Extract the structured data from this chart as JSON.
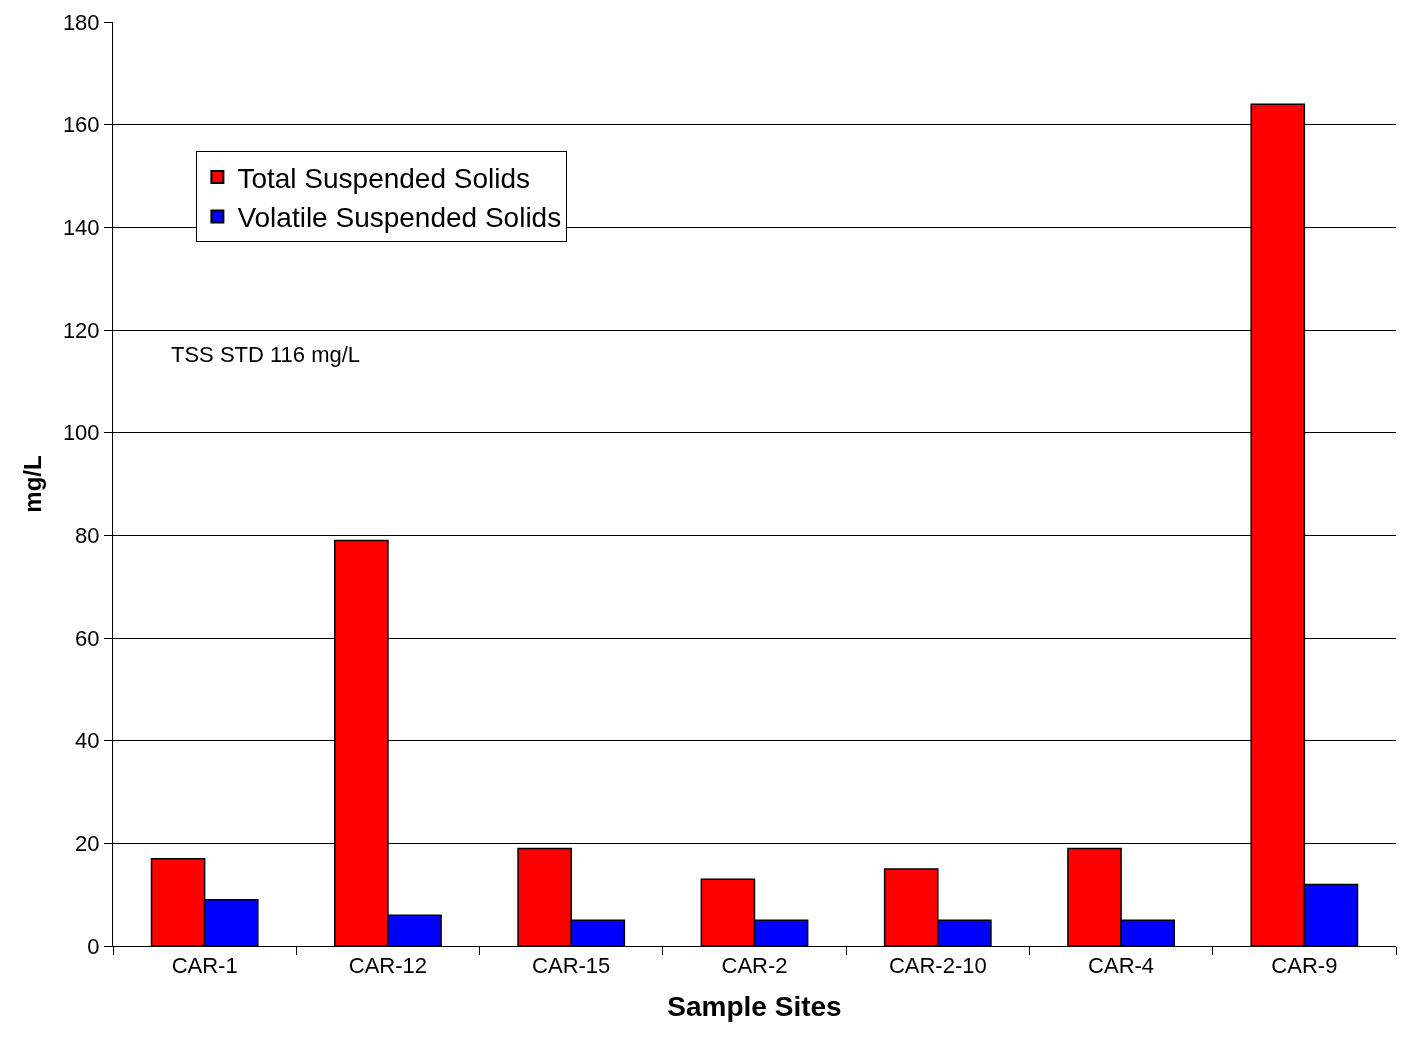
{
  "chart_data": {
    "type": "bar",
    "xlabel": "Sample Sites",
    "ylabel": "mg/L",
    "categories": [
      "CAR-1",
      "CAR-12",
      "CAR-15",
      "CAR-2",
      "CAR-2-10",
      "CAR-4",
      "CAR-9"
    ],
    "series": [
      {
        "name": "Total Suspended Solids",
        "color": "#ff0000",
        "values": [
          17,
          79,
          19,
          13,
          15,
          19,
          164
        ]
      },
      {
        "name": "Volatile Suspended Solids",
        "color": "#0000ff",
        "values": [
          9,
          6,
          5,
          5,
          5,
          5,
          12
        ]
      }
    ],
    "ylim": [
      0,
      180
    ],
    "yticks": [
      0,
      20,
      40,
      60,
      80,
      100,
      120,
      140,
      160,
      180
    ],
    "grid": "y",
    "legend": "top left",
    "annotations": [
      "TSS STD 116 mg/L"
    ]
  }
}
